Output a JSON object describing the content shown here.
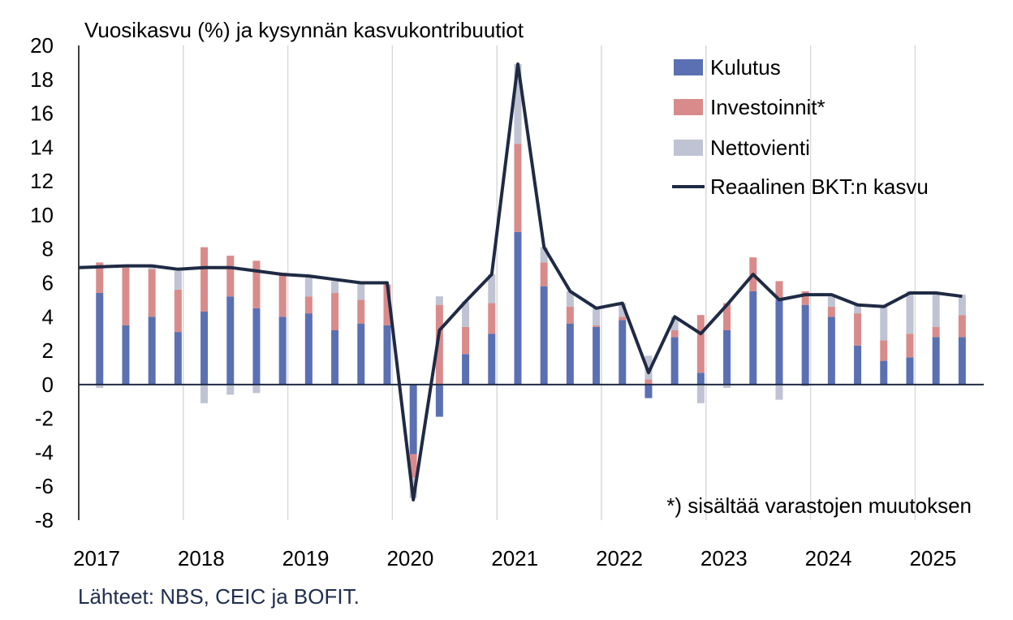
{
  "chart_data": {
    "type": "bar",
    "title": "Vuosikasvu (%) ja kysynnän kasvukontribuutiot",
    "note": "*) sisältää varastojen muutoksen",
    "source": "Lähteet: NBS, CEIC ja BOFIT.",
    "x_tick_labels": [
      "2017",
      "2018",
      "2019",
      "2020",
      "2021",
      "2022",
      "2023",
      "2024",
      "2025"
    ],
    "y_ticks": [
      -8,
      -6,
      -4,
      -2,
      0,
      2,
      4,
      6,
      8,
      10,
      12,
      14,
      16,
      18,
      20
    ],
    "ylim": [
      -8,
      20
    ],
    "grid": true,
    "legend_position": "top-right",
    "quarters": [
      "2017Q1",
      "2017Q2",
      "2017Q3",
      "2017Q4",
      "2018Q1",
      "2018Q2",
      "2018Q3",
      "2018Q4",
      "2019Q1",
      "2019Q2",
      "2019Q3",
      "2019Q4",
      "2020Q1",
      "2020Q2",
      "2020Q3",
      "2020Q4",
      "2021Q1",
      "2021Q2",
      "2021Q3",
      "2021Q4",
      "2022Q1",
      "2022Q2",
      "2022Q3",
      "2022Q4",
      "2023Q1",
      "2023Q2",
      "2023Q3",
      "2023Q4",
      "2024Q1",
      "2024Q2",
      "2024Q3",
      "2024Q4",
      "2025Q1",
      "2025Q2"
    ],
    "series": [
      {
        "name": "Kulutus",
        "kind": "bar",
        "color": "#5b70b3",
        "values": [
          5.4,
          3.5,
          4.0,
          3.1,
          4.3,
          5.2,
          4.5,
          4.0,
          4.2,
          3.2,
          3.6,
          3.5,
          -4.1,
          -1.9,
          1.8,
          3.0,
          9.0,
          5.8,
          3.6,
          3.4,
          3.8,
          -0.8,
          2.8,
          0.7,
          3.2,
          5.5,
          5.0,
          4.7,
          4.0,
          2.3,
          1.4,
          1.6,
          2.8,
          2.8
        ]
      },
      {
        "name": "Investoinnit*",
        "kind": "bar",
        "color": "#d98b8b",
        "values": [
          1.8,
          3.4,
          2.8,
          2.5,
          3.8,
          2.4,
          2.8,
          2.6,
          1.0,
          2.2,
          1.4,
          2.4,
          -1.4,
          4.7,
          1.6,
          1.8,
          5.2,
          1.4,
          1.0,
          0.1,
          0.2,
          0.3,
          0.4,
          3.4,
          1.6,
          2.0,
          1.1,
          0.8,
          0.6,
          1.9,
          1.2,
          1.4,
          0.6,
          1.3
        ]
      },
      {
        "name": "Nettovienti",
        "kind": "bar",
        "color": "#bfc3d3",
        "values": [
          -0.2,
          0.1,
          0.1,
          1.1,
          -1.1,
          -0.6,
          -0.5,
          0.0,
          1.1,
          0.7,
          1.0,
          0.0,
          -1.2,
          0.5,
          1.5,
          1.7,
          4.7,
          0.9,
          0.9,
          1.0,
          0.8,
          1.4,
          0.8,
          -1.1,
          -0.2,
          0.0,
          -0.9,
          -0.1,
          0.6,
          0.5,
          2.1,
          2.5,
          2.0,
          1.2
        ]
      },
      {
        "name": "Reaalinen BKT:n kasvu",
        "kind": "line",
        "color": "#1f2a44",
        "values": [
          6.9,
          7.0,
          7.0,
          6.8,
          6.9,
          6.9,
          6.7,
          6.5,
          6.4,
          6.2,
          6.0,
          6.0,
          -6.8,
          3.2,
          4.9,
          6.5,
          18.9,
          8.1,
          5.5,
          4.5,
          4.8,
          0.7,
          4.0,
          3.0,
          4.7,
          6.5,
          5.0,
          5.3,
          5.3,
          4.7,
          4.6,
          5.4,
          5.4,
          5.2
        ]
      }
    ]
  }
}
